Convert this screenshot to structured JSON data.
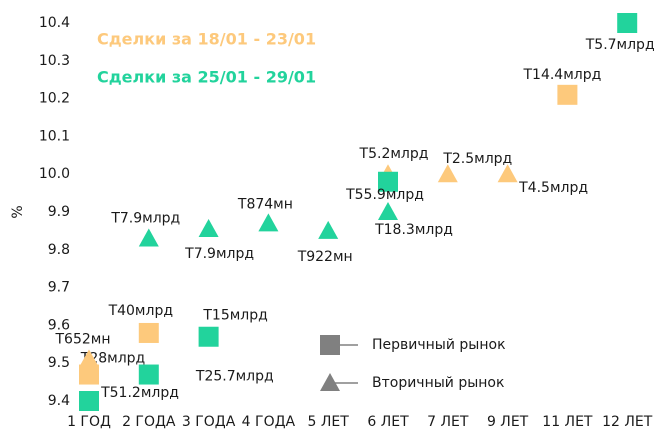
{
  "chart_data": {
    "type": "scatter",
    "y_label": "%",
    "categories": [
      "1 ГОД",
      "2 ГОДА",
      "3 ГОДА",
      "4 ГОДА",
      "5 ЛЕТ",
      "6 ЛЕТ",
      "7 ЛЕТ",
      "9 ЛЕТ",
      "11 ЛЕТ",
      "12 ЛЕТ"
    ],
    "ylim": [
      9.4,
      10.4
    ],
    "yticks": [
      9.4,
      9.5,
      9.6,
      9.7,
      9.8,
      9.9,
      {
        "value": 10,
        "label": "10.0"
      },
      10.1,
      10.2,
      10.3,
      10.4
    ],
    "periods": [
      {
        "name": "Сделки за 18/01 - 23/01",
        "color": "#fdc97c"
      },
      {
        "name": "Сделки за 25/01 - 29/01",
        "color": "#22d39c"
      }
    ],
    "markets": [
      {
        "name": "Первичный рынок",
        "marker": "square",
        "color": "#808080"
      },
      {
        "name": "Вторичный рынок",
        "marker": "triangle",
        "color": "#808080"
      }
    ],
    "series": [
      {
        "period": 0,
        "market": 0,
        "values": [
          9.47,
          9.58,
          null,
          null,
          null,
          null,
          null,
          null,
          10.21,
          null
        ],
        "value_labels": [
          "Т28млрд",
          "Т40млрд",
          null,
          null,
          null,
          null,
          null,
          null,
          "Т14.4млрд",
          null
        ]
      },
      {
        "period": 0,
        "market": 1,
        "values": [
          9.51,
          null,
          null,
          null,
          null,
          10.0,
          10.0,
          10.0,
          null,
          null
        ],
        "value_labels": [
          "Т652мн",
          null,
          null,
          null,
          null,
          "Т5.2млрд",
          "Т2.5млрд",
          "Т4.5млрд",
          null,
          null
        ]
      },
      {
        "period": 1,
        "market": 0,
        "values": [
          9.4,
          9.47,
          9.57,
          null,
          null,
          9.98,
          null,
          null,
          null,
          10.4
        ],
        "value_labels": [
          "Т51.2млрд",
          "Т25.7млрд",
          "Т15млрд",
          null,
          null,
          "Т55.9млрд",
          null,
          null,
          null,
          "Т5.7млрд"
        ]
      },
      {
        "period": 1,
        "market": 1,
        "values": [
          null,
          9.83,
          9.855,
          9.87,
          9.85,
          9.9,
          null,
          null,
          null,
          null
        ],
        "value_labels": [
          null,
          "Т7.9млрд",
          "Т7.9млрд",
          "Т874мн",
          "Т922мн",
          "Т18.3млрд",
          null,
          null,
          null,
          null
        ]
      }
    ]
  }
}
